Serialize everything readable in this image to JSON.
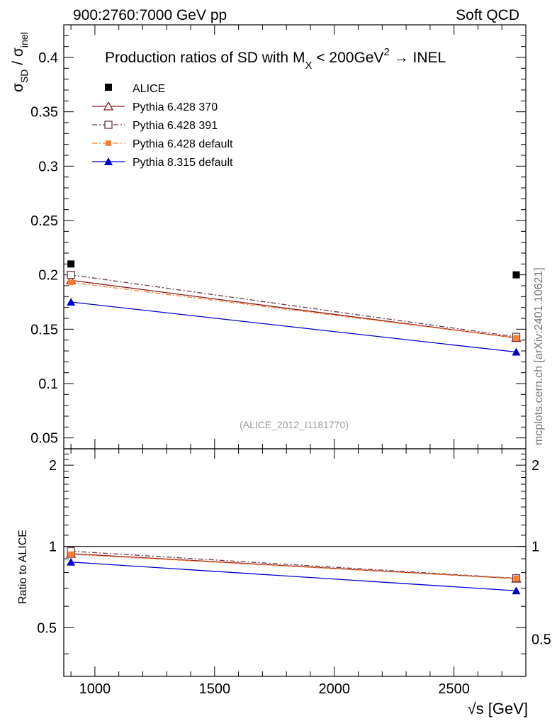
{
  "header": {
    "left": "900:2760:7000 GeV pp",
    "right": "Soft QCD"
  },
  "side_label": "mcplots.cern.ch [arXiv:2401.10621]",
  "watermark": "(ALICE_2012_I1181770)",
  "chart_data": [
    {
      "type": "scatter",
      "title_parts": {
        "pre": "Production ratios of SD with M",
        "sub": "X",
        "mid": " < 200GeV",
        "sup": "2",
        "post": " → INEL"
      },
      "ylabel": {
        "main1": "σ",
        "sub1": "SD",
        "sep": " / ",
        "main2": "σ",
        "sub2": "inel"
      },
      "xlim": [
        870,
        2800
      ],
      "ylim": [
        0.04,
        0.43
      ],
      "yticks": [
        0.05,
        0.1,
        0.15,
        0.2,
        0.25,
        0.3,
        0.35,
        0.4
      ],
      "ytick_labels": [
        "0.05",
        "0.1",
        "0.15",
        "0.2",
        "0.25",
        "0.3",
        "0.35",
        "0.4"
      ],
      "legend": [
        "ALICE",
        "Pythia 6.428 370",
        "Pythia 6.428 391",
        "Pythia 6.428 default",
        "Pythia 8.315 default"
      ],
      "series": [
        {
          "name": "ALICE",
          "x": [
            900,
            2760
          ],
          "values": [
            0.21,
            0.2
          ],
          "color": "#000000"
        },
        {
          "name": "Pythia 6.428 370",
          "x": [
            900,
            2760
          ],
          "values": [
            0.195,
            0.142
          ],
          "color": "#8b1a1a"
        },
        {
          "name": "Pythia 6.428 391",
          "x": [
            900,
            2760
          ],
          "values": [
            0.2,
            0.143
          ],
          "color": "#6b3a4a"
        },
        {
          "name": "Pythia 6.428 default",
          "x": [
            900,
            2760
          ],
          "values": [
            0.193,
            0.142
          ],
          "color": "#ff7f2a"
        },
        {
          "name": "Pythia 8.315 default",
          "x": [
            900,
            2760
          ],
          "values": [
            0.175,
            0.129
          ],
          "color": "#0000cc"
        }
      ]
    },
    {
      "type": "line",
      "ylabel": "Ratio to ALICE",
      "xlabel": "√s [GeV]",
      "xlim": [
        870,
        2800
      ],
      "ylim": [
        0.33,
        2.3
      ],
      "xticks": [
        1000,
        1500,
        2000,
        2500
      ],
      "xtick_labels": [
        "1000",
        "1500",
        "2000",
        "2500"
      ],
      "yticks": [
        0.5,
        1,
        2
      ],
      "ytick_labels": [
        "0.5",
        "1",
        "2"
      ],
      "series": [
        {
          "name": "Pythia 6.428 370",
          "x": [
            900,
            2760
          ],
          "values": [
            0.94,
            0.76
          ],
          "color": "#8b1a1a"
        },
        {
          "name": "Pythia 6.428 391",
          "x": [
            900,
            2760
          ],
          "values": [
            0.96,
            0.762
          ],
          "color": "#6b3a4a"
        },
        {
          "name": "Pythia 6.428 default",
          "x": [
            900,
            2760
          ],
          "values": [
            0.935,
            0.76
          ],
          "color": "#ff7f2a"
        },
        {
          "name": "Pythia 8.315 default",
          "x": [
            900,
            2760
          ],
          "values": [
            0.875,
            0.685
          ],
          "color": "#0000cc"
        }
      ]
    }
  ]
}
